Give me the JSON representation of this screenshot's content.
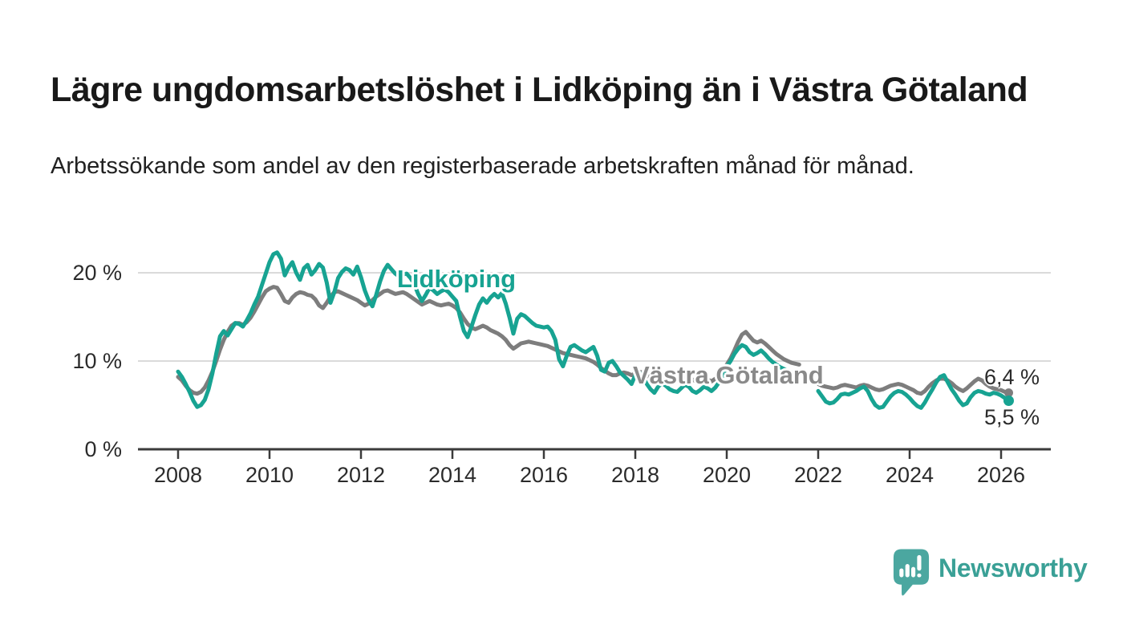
{
  "header": {
    "title": "Lägre ungdomsarbetslöshet i Lidköping än i Västra Götaland",
    "subtitle": "Arbetssökande som andel av den registerbaserade arbetskraften månad för månad."
  },
  "logo": {
    "text": "Newsworthy",
    "icon": "newsworthy-speech-bubble-bar-chart-icon",
    "icon_color": "#4ba7a0",
    "text_color": "#3aa096"
  },
  "chart_data": {
    "type": "line",
    "title": "Lägre ungdomsarbetslöshet i Lidköping än i Västra Götaland",
    "subtitle": "Arbetssökande som andel av den registerbaserade arbetskraften månad för månad.",
    "frequency": "monthly",
    "x_range": [
      "2008-01",
      "2026-03"
    ],
    "ylim": [
      0,
      23.6
    ],
    "grid": "horizontal",
    "axis_color": "#3b3b3b",
    "gridline_color": "#dadada",
    "y_ticks": [
      {
        "value": 20,
        "label": "20 %"
      },
      {
        "value": 10,
        "label": "10 %"
      },
      {
        "value": 0,
        "label": "0 %"
      }
    ],
    "x_ticks": [
      2008,
      2010,
      2012,
      2014,
      2016,
      2018,
      2020,
      2022,
      2024,
      2026
    ],
    "series": [
      {
        "name": "Västra Götaland",
        "color": "#7d7d7d",
        "label_color": "#8a8a8a",
        "end_label": "6,4 %",
        "end_value": 6.4,
        "values": [
          8.2,
          7.8,
          7.2,
          6.7,
          6.4,
          6.3,
          6.5,
          7.0,
          7.8,
          8.8,
          10.0,
          11.3,
          12.4,
          13.3,
          14.0,
          14.3,
          14.3,
          14.1,
          14.4,
          14.9,
          15.6,
          16.4,
          17.2,
          17.9,
          18.2,
          18.4,
          18.3,
          17.6,
          16.8,
          16.6,
          17.2,
          17.6,
          17.8,
          17.7,
          17.5,
          17.4,
          17.0,
          16.3,
          16.0,
          16.6,
          17.3,
          17.8,
          17.9,
          17.7,
          17.5,
          17.3,
          17.1,
          16.9,
          16.6,
          16.3,
          16.5,
          16.9,
          17.3,
          17.6,
          17.9,
          18.0,
          17.8,
          17.6,
          17.7,
          17.8,
          17.6,
          17.3,
          17.0,
          16.7,
          16.4,
          16.6,
          16.8,
          16.6,
          16.4,
          16.3,
          16.4,
          16.5,
          16.3,
          16.0,
          15.5,
          14.8,
          14.2,
          13.8,
          13.6,
          13.8,
          14.0,
          13.8,
          13.5,
          13.3,
          13.1,
          12.8,
          12.4,
          11.8,
          11.4,
          11.7,
          12.0,
          12.1,
          12.2,
          12.1,
          12.0,
          11.9,
          11.8,
          11.7,
          11.5,
          11.3,
          11.1,
          10.9,
          10.8,
          10.7,
          10.6,
          10.5,
          10.4,
          10.3,
          10.1,
          9.9,
          9.6,
          9.2,
          8.9,
          8.6,
          8.4,
          8.4,
          8.6,
          8.7,
          8.6,
          8.4,
          8.6,
          8.8,
          8.7,
          8.4,
          8.1,
          7.9,
          8.1,
          8.3,
          8.2,
          8.0,
          7.9,
          7.8,
          8.0,
          8.2,
          8.1,
          7.9,
          7.7,
          7.8,
          8.0,
          7.9,
          7.7,
          8.0,
          8.3,
          8.8,
          9.6,
          10.3,
          11.2,
          12.2,
          13.0,
          13.3,
          12.8,
          12.3,
          12.1,
          12.3,
          12.0,
          11.6,
          11.2,
          10.8,
          10.5,
          10.2,
          10.0,
          9.8,
          9.7,
          9.6,
          null,
          null,
          null,
          null,
          7.4,
          7.2,
          7.1,
          7.0,
          6.9,
          7.0,
          7.2,
          7.3,
          7.2,
          7.1,
          7.0,
          7.2,
          7.3,
          7.2,
          7.0,
          6.8,
          6.7,
          6.8,
          7.0,
          7.2,
          7.3,
          7.4,
          7.3,
          7.1,
          6.9,
          6.7,
          6.4,
          6.3,
          6.6,
          7.1,
          7.5,
          7.8,
          8.0,
          8.0,
          7.8,
          7.5,
          7.1,
          6.8,
          6.6,
          6.9,
          7.3,
          7.7,
          8.0,
          7.8,
          7.4,
          7.1,
          6.9,
          6.8,
          6.7,
          6.5,
          6.4
        ]
      },
      {
        "name": "Lidköping",
        "color": "#17a392",
        "label_color": "#17a392",
        "end_label": "5,5 %",
        "end_value": 5.5,
        "values": [
          8.8,
          8.2,
          7.4,
          6.5,
          5.5,
          4.8,
          5.0,
          5.6,
          6.8,
          8.6,
          10.8,
          12.8,
          13.4,
          12.9,
          13.6,
          14.3,
          14.2,
          13.9,
          14.6,
          15.4,
          16.4,
          17.3,
          18.6,
          19.9,
          21.2,
          22.1,
          22.3,
          21.6,
          19.7,
          20.6,
          21.2,
          20.0,
          19.2,
          20.5,
          20.9,
          19.8,
          20.3,
          21.0,
          20.6,
          18.9,
          16.6,
          17.8,
          19.4,
          20.1,
          20.5,
          20.3,
          19.8,
          20.7,
          19.5,
          18.0,
          16.9,
          16.2,
          17.5,
          19.0,
          20.2,
          20.9,
          20.4,
          19.9,
          19.6,
          19.8,
          19.9,
          19.4,
          18.7,
          17.6,
          16.8,
          17.5,
          18.3,
          18.0,
          17.6,
          17.9,
          18.1,
          17.8,
          17.3,
          16.8,
          15.0,
          13.4,
          12.7,
          13.9,
          15.2,
          16.4,
          17.1,
          16.6,
          17.2,
          17.6,
          17.2,
          17.7,
          16.5,
          14.9,
          13.1,
          14.8,
          15.3,
          15.1,
          14.7,
          14.3,
          14.0,
          13.9,
          13.8,
          13.9,
          13.4,
          12.4,
          10.2,
          9.4,
          10.6,
          11.6,
          11.8,
          11.5,
          11.2,
          11.0,
          11.3,
          11.6,
          10.6,
          9.0,
          8.8,
          9.8,
          10.0,
          9.4,
          8.7,
          8.3,
          7.9,
          7.4,
          8.4,
          8.7,
          8.2,
          7.4,
          6.8,
          6.4,
          7.1,
          7.5,
          7.2,
          6.8,
          6.6,
          6.5,
          6.9,
          7.3,
          7.1,
          6.6,
          6.4,
          6.7,
          7.1,
          6.9,
          6.6,
          7.0,
          7.6,
          8.4,
          9.4,
          10.0,
          10.8,
          11.4,
          11.8,
          11.6,
          11.0,
          10.7,
          10.9,
          11.2,
          10.8,
          10.3,
          9.9,
          9.6,
          9.3,
          9.1,
          8.9,
          8.7,
          8.6,
          8.5,
          null,
          null,
          null,
          null,
          6.6,
          6.0,
          5.4,
          5.2,
          5.3,
          5.7,
          6.2,
          6.3,
          6.2,
          6.4,
          6.6,
          6.9,
          7.1,
          6.6,
          5.7,
          5.0,
          4.7,
          4.8,
          5.4,
          6.0,
          6.4,
          6.6,
          6.5,
          6.2,
          5.8,
          5.3,
          4.9,
          4.7,
          5.3,
          6.1,
          6.8,
          7.6,
          8.2,
          8.4,
          7.6,
          6.8,
          6.2,
          5.5,
          5.0,
          5.2,
          5.9,
          6.4,
          6.6,
          6.5,
          6.3,
          6.2,
          6.4,
          6.3,
          6.1,
          5.8,
          5.5
        ]
      }
    ]
  }
}
